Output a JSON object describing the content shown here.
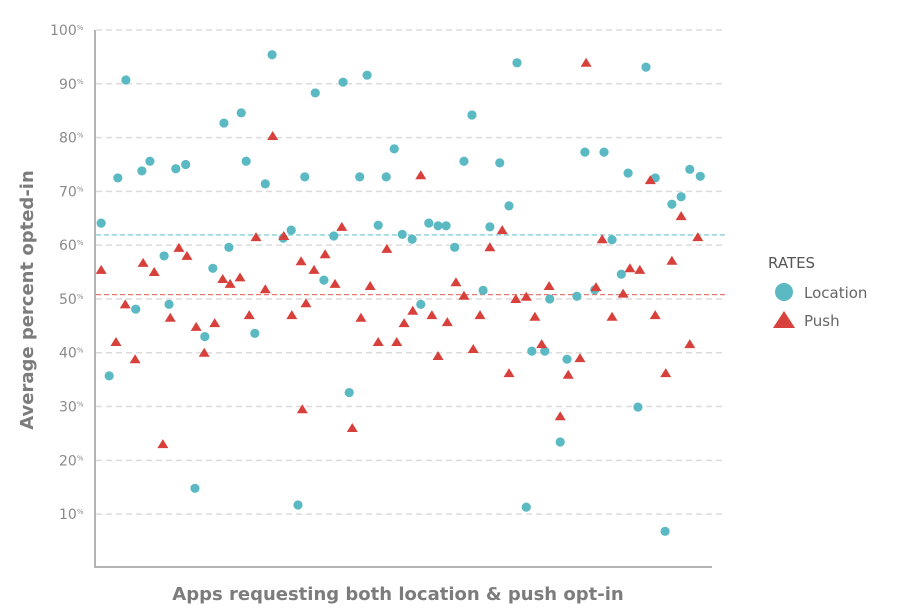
{
  "chart_data": {
    "type": "scatter",
    "title": "",
    "xlabel": "Apps requesting both location & push opt-in",
    "ylabel": "Average percent opted-in",
    "xlim": [
      0,
      100
    ],
    "ylim": [
      0,
      100
    ],
    "yticks": [
      10,
      20,
      30,
      40,
      50,
      60,
      70,
      80,
      90,
      100
    ],
    "ytick_suffix": "%",
    "grid": true,
    "legend": {
      "title": "RATES",
      "placement": "right"
    },
    "averages": [
      {
        "series": "Location",
        "value": 61.9
      },
      {
        "series": "Push",
        "value": 50.8
      }
    ],
    "series": [
      {
        "name": "Location",
        "marker": "circle",
        "color": "#5bb9c4",
        "x": [
          1,
          2.3,
          3.7,
          5.0,
          6.6,
          7.6,
          8.9,
          11.2,
          12.0,
          13.1,
          14.7,
          16.2,
          17.8,
          19.1,
          20.9,
          21.7,
          23.7,
          24.5,
          25.9,
          27.6,
          28.7,
          30.5,
          31.8,
          32.9,
          34.0,
          35.7,
          37.1,
          38.7,
          40.2,
          41.2,
          42.9,
          44.1,
          45.9,
          47.2,
          48.5,
          49.8,
          51.4,
          52.8,
          54.1,
          55.6,
          56.9,
          58.3,
          59.8,
          61.1,
          62.9,
          64.0,
          65.6,
          67.1,
          68.4,
          69.9,
          70.8,
          72.9,
          73.7,
          75.4,
          76.5,
          78.1,
          79.4,
          81.0,
          82.5,
          83.8,
          85.3,
          86.4,
          88.0,
          89.3,
          90.8,
          92.4,
          93.5,
          95.0,
          96.4,
          98.1
        ],
        "y": [
          64.1,
          35.7,
          72.5,
          90.7,
          48.1,
          73.8,
          75.6,
          58.0,
          49.0,
          74.2,
          75.0,
          14.8,
          43.0,
          55.7,
          82.7,
          59.6,
          84.6,
          75.6,
          43.6,
          71.4,
          95.4,
          61.3,
          62.8,
          11.7,
          72.7,
          88.3,
          53.5,
          61.7,
          90.3,
          32.6,
          72.7,
          91.6,
          63.7,
          72.7,
          77.9,
          62.0,
          61.1,
          49.0,
          64.1,
          63.6,
          63.6,
          59.6,
          75.6,
          84.2,
          51.6,
          63.4,
          75.3,
          67.3,
          93.9,
          11.3,
          40.3,
          40.3,
          50.0,
          23.4,
          38.8,
          50.5,
          77.3,
          51.7,
          77.3,
          61.0,
          54.6,
          73.4,
          29.9,
          93.1,
          72.5,
          6.8,
          67.6,
          69.0,
          74.1,
          72.8
        ]
      },
      {
        "name": "Push",
        "marker": "triangle",
        "color": "#d8413b",
        "x": [
          1.0,
          3.4,
          4.9,
          6.5,
          7.8,
          9.6,
          11.0,
          12.2,
          13.6,
          14.9,
          16.4,
          17.7,
          19.4,
          20.7,
          21.9,
          23.5,
          25.0,
          26.1,
          27.6,
          28.8,
          30.6,
          31.9,
          33.4,
          33.6,
          34.2,
          35.5,
          37.3,
          38.9,
          40.0,
          41.7,
          43.1,
          44.6,
          45.9,
          47.3,
          48.9,
          50.1,
          51.5,
          52.8,
          54.6,
          55.6,
          57.1,
          58.5,
          59.8,
          61.3,
          62.4,
          64.0,
          66.0,
          67.1,
          68.2,
          69.9,
          71.3,
          72.4,
          73.6,
          75.4,
          76.7,
          78.6,
          79.6,
          81.2,
          82.2,
          83.8,
          85.6,
          86.7,
          88.3,
          90.0,
          90.8,
          92.5,
          93.5,
          95.0,
          96.4,
          97.7
        ],
        "y": [
          55.4,
          42.0,
          49.0,
          38.8,
          56.7,
          55.0,
          23.0,
          46.5,
          59.5,
          58.0,
          44.8,
          40.0,
          45.5,
          53.7,
          52.8,
          54.0,
          47.0,
          61.5,
          51.8,
          80.3,
          61.7,
          47.0,
          57.0,
          29.5,
          49.2,
          55.4,
          58.3,
          52.8,
          63.4,
          26.0,
          46.5,
          52.4,
          42.0,
          59.3,
          42.0,
          45.5,
          47.8,
          73.0,
          47.0,
          39.4,
          45.7,
          53.1,
          50.6,
          40.7,
          47.0,
          59.6,
          62.8,
          36.2,
          50.0,
          50.4,
          46.7,
          41.6,
          52.4,
          28.2,
          35.9,
          39.0,
          93.9,
          52.2,
          61.1,
          46.7,
          51.0,
          55.7,
          55.4,
          72.1,
          47.0,
          36.2,
          57.1,
          65.4,
          41.6,
          61.5
        ]
      }
    ]
  }
}
